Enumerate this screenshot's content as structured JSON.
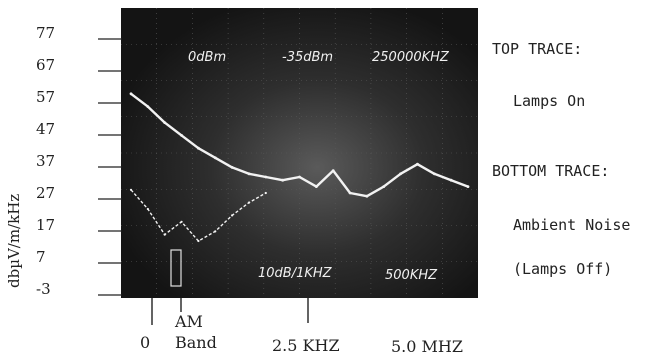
{
  "chart_data": {
    "type": "line",
    "ylabel": "dbµV/m/kHz",
    "yticks": [
      77,
      67,
      57,
      47,
      37,
      27,
      17,
      7,
      -3
    ],
    "ylim": [
      -3,
      77
    ],
    "x_ticks": [
      {
        "label": "0"
      },
      {
        "label": "AM\nBand"
      },
      {
        "label": "2.5 KHZ"
      },
      {
        "label": "5.0 MHZ"
      }
    ],
    "screen_text": {
      "top_left": "0dBm",
      "top_mid": "-35dBm",
      "top_right": "250000KHZ",
      "bottom_mid": "10dB/1KHZ",
      "bottom_right": "500KHZ"
    },
    "series": [
      {
        "name": "TOP TRACE: Lamps On",
        "x": [
          0.0,
          0.05,
          0.1,
          0.15,
          0.2,
          0.25,
          0.3,
          0.35,
          0.4,
          0.45,
          0.5,
          0.55,
          0.6,
          0.65,
          0.7,
          0.75,
          0.8,
          0.85,
          0.9,
          0.95,
          1.0
        ],
        "y": [
          58,
          54,
          49,
          45,
          41,
          38,
          35,
          33,
          32,
          31,
          32,
          29,
          34,
          27,
          26,
          29,
          33,
          36,
          33,
          31,
          29
        ]
      },
      {
        "name": "BOTTOM TRACE: Ambient Noise (Lamps Off)",
        "x": [
          0.0,
          0.05,
          0.1,
          0.15,
          0.2,
          0.25,
          0.3,
          0.35,
          0.4
        ],
        "y": [
          28,
          22,
          14,
          18,
          12,
          15,
          20,
          24,
          27
        ]
      }
    ]
  },
  "legend": {
    "top_title": "TOP TRACE:",
    "top_desc": "Lamps On",
    "bottom_title": "BOTTOM TRACE:",
    "bottom_desc1": "Ambient Noise",
    "bottom_desc2": "(Lamps Off)"
  },
  "colors": {
    "screen": "#1b1b1b",
    "trace": "#f2f2f2",
    "grid": "#5a5a5a"
  }
}
